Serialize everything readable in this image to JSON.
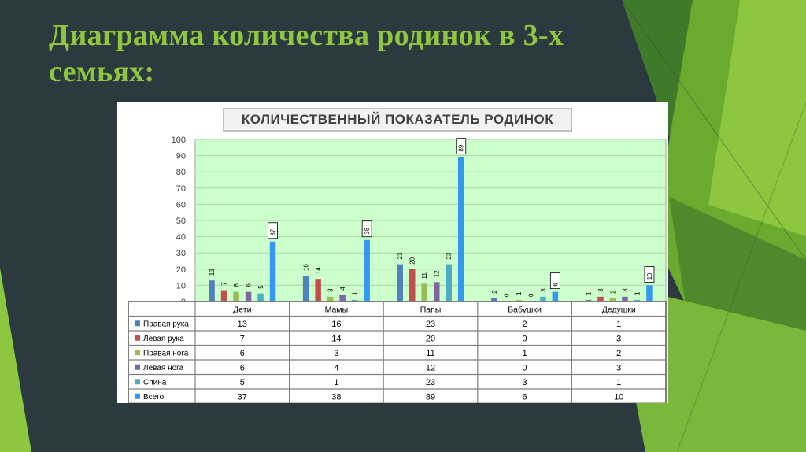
{
  "slide": {
    "title_line1": "Диаграмма количества родинок в 3-х",
    "title_line2": "семьях:",
    "colors": {
      "background": "#2b3a3e",
      "title": "#8fc63f",
      "accent_greens": [
        "#8dc63f",
        "#5a9e2a",
        "#3f7a2a"
      ]
    }
  },
  "chart_data": {
    "type": "bar",
    "title": "КОЛИЧЕСТВЕННЫЙ ПОКАЗАТЕЛЬ РОДИНОК",
    "categories": [
      "Дети",
      "Мамы",
      "Папы",
      "Бабушки",
      "Дедушки"
    ],
    "series": [
      {
        "name": "Правая рука",
        "color": "#4f81bd",
        "values": [
          13,
          16,
          23,
          2,
          1
        ]
      },
      {
        "name": "Левая рука",
        "color": "#c0504d",
        "values": [
          7,
          14,
          20,
          0,
          3
        ]
      },
      {
        "name": "Правая нога",
        "color": "#9bbb59",
        "values": [
          6,
          3,
          11,
          1,
          2
        ]
      },
      {
        "name": "Левая нога",
        "color": "#8064a2",
        "values": [
          6,
          4,
          12,
          0,
          3
        ]
      },
      {
        "name": "Спина",
        "color": "#4bacc6",
        "values": [
          5,
          1,
          23,
          3,
          1
        ]
      },
      {
        "name": "Всего",
        "color": "#3399ee",
        "values": [
          37,
          38,
          89,
          6,
          10
        ]
      }
    ],
    "ylim": [
      0,
      100
    ],
    "yticks": [
      0,
      10,
      20,
      30,
      40,
      50,
      60,
      70,
      80,
      90,
      100
    ],
    "grid": true,
    "plot_background": "#ccffcc",
    "data_table": true,
    "boxed_series": "Всего"
  }
}
